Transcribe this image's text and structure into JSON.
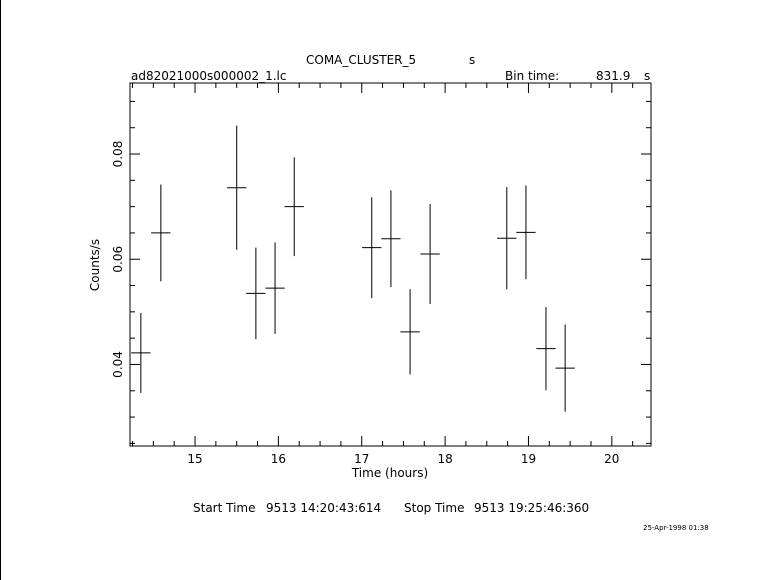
{
  "header": {
    "object": "COMA_CLUSTER_5",
    "object_unit": "s",
    "filename": "ad82021000s000002_1.lc",
    "bin_time_label": "Bin time:",
    "bin_time_value": "831.9",
    "bin_time_unit": "s"
  },
  "footer": {
    "start_label": "Start Time",
    "start_value": "9513 14:20:43:614",
    "stop_label": "Stop Time",
    "stop_value": "9513 19:25:46:360",
    "plot_date": "25-Apr-1998 01:38"
  },
  "chart_data": {
    "type": "scatter",
    "xlabel": "Time (hours)",
    "ylabel": "Counts/s",
    "xlim": [
      14.22,
      20.47
    ],
    "ylim": [
      0.0245,
      0.0935
    ],
    "x_ticks": [
      15,
      16,
      17,
      18,
      19,
      20
    ],
    "y_ticks": [
      0.04,
      0.06,
      0.08
    ],
    "x_tick_labels": [
      "15",
      "16",
      "17",
      "18",
      "19",
      "20"
    ],
    "y_tick_labels": [
      "0.04",
      "0.06",
      "0.08"
    ],
    "grid": false,
    "x_half_error": 0.116,
    "points": [
      {
        "x": 14.35,
        "y": 0.0422,
        "yerr": 0.0076
      },
      {
        "x": 14.59,
        "y": 0.065,
        "yerr": 0.0092
      },
      {
        "x": 15.5,
        "y": 0.0736,
        "yerr": 0.0118
      },
      {
        "x": 15.73,
        "y": 0.0535,
        "yerr": 0.0087
      },
      {
        "x": 15.96,
        "y": 0.0545,
        "yerr": 0.0087
      },
      {
        "x": 16.19,
        "y": 0.07,
        "yerr": 0.0094
      },
      {
        "x": 17.12,
        "y": 0.0622,
        "yerr": 0.0096
      },
      {
        "x": 17.35,
        "y": 0.0639,
        "yerr": 0.0092
      },
      {
        "x": 17.58,
        "y": 0.0462,
        "yerr": 0.0081
      },
      {
        "x": 17.82,
        "y": 0.061,
        "yerr": 0.0095
      },
      {
        "x": 18.74,
        "y": 0.064,
        "yerr": 0.0097
      },
      {
        "x": 18.97,
        "y": 0.0651,
        "yerr": 0.0089
      },
      {
        "x": 19.21,
        "y": 0.043,
        "yerr": 0.0079
      },
      {
        "x": 19.44,
        "y": 0.0393,
        "yerr": 0.0083
      }
    ]
  }
}
